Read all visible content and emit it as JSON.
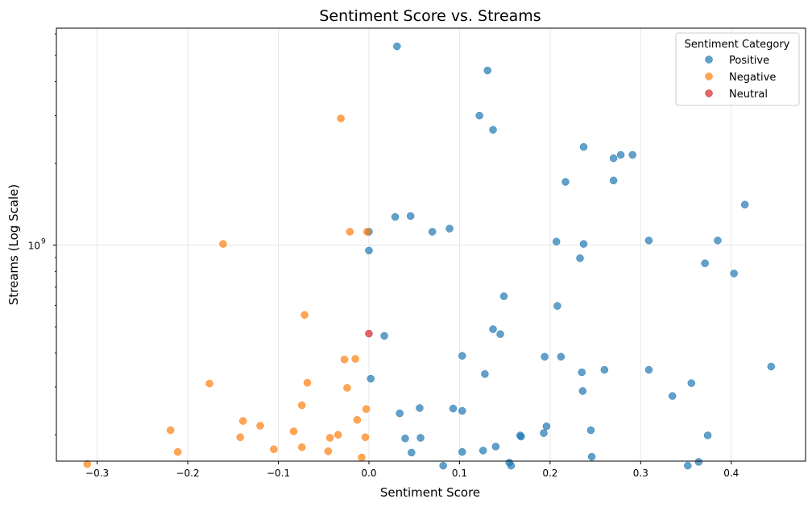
{
  "chart_data": {
    "type": "scatter",
    "title": "Sentiment Score vs. Streams",
    "xlabel": "Sentiment Score",
    "ylabel": "Streams (Log Scale)",
    "x_ticks": [
      -0.3,
      -0.2,
      -0.1,
      0.0,
      0.1,
      0.2,
      0.3,
      0.4
    ],
    "x_tick_labels": [
      "−0.3",
      "−0.2",
      "−0.1",
      "0.0",
      "0.1",
      "0.2",
      "0.3",
      "0.4"
    ],
    "y_major_ticks": [
      1000000000
    ],
    "y_tick_label_base": "10",
    "y_tick_label_exp": "9",
    "xlim": [
      -0.345,
      0.482
    ],
    "ylim": [
      160000000,
      6300000000
    ],
    "y_scale": "log",
    "grid": true,
    "legend": {
      "title": "Sentiment Category",
      "placement": "top-right"
    },
    "series": [
      {
        "name": "Positive",
        "color": "#1f77b4",
        "points": [
          [
            0.031,
            5400000000
          ],
          [
            0.131,
            4400000000
          ],
          [
            0.122,
            3000000000
          ],
          [
            0.137,
            2660000000
          ],
          [
            0.237,
            2300000000
          ],
          [
            0.27,
            2090000000
          ],
          [
            0.278,
            2150000000
          ],
          [
            0.291,
            2150000000
          ],
          [
            0.217,
            1710000000
          ],
          [
            0.27,
            1730000000
          ],
          [
            0.415,
            1410000000
          ],
          [
            0.029,
            1270000000
          ],
          [
            0.046,
            1280000000
          ],
          [
            0.089,
            1150000000
          ],
          [
            0.07,
            1120000000
          ],
          [
            0.0,
            1120000000
          ],
          [
            0.207,
            1030000000
          ],
          [
            0.237,
            1010000000
          ],
          [
            0.309,
            1040000000
          ],
          [
            0.385,
            1040000000
          ],
          [
            0.0,
            955000000
          ],
          [
            0.233,
            895000000
          ],
          [
            0.371,
            857000000
          ],
          [
            0.403,
            786000000
          ],
          [
            0.149,
            648000000
          ],
          [
            0.208,
            597000000
          ],
          [
            0.137,
            490000000
          ],
          [
            0.145,
            470000000
          ],
          [
            0.017,
            463000000
          ],
          [
            0.103,
            391000000
          ],
          [
            0.194,
            388000000
          ],
          [
            0.212,
            388000000
          ],
          [
            0.444,
            357000000
          ],
          [
            0.26,
            347000000
          ],
          [
            0.309,
            347000000
          ],
          [
            0.235,
            340000000
          ],
          [
            0.128,
            335000000
          ],
          [
            0.356,
            310000000
          ],
          [
            0.002,
            322000000
          ],
          [
            0.236,
            290000000
          ],
          [
            0.335,
            278000000
          ],
          [
            0.056,
            251000000
          ],
          [
            0.093,
            250000000
          ],
          [
            0.103,
            245000000
          ],
          [
            0.034,
            240000000
          ],
          [
            0.196,
            215000000
          ],
          [
            0.245,
            208000000
          ],
          [
            0.193,
            203000000
          ],
          [
            0.167,
            199000000
          ],
          [
            0.168,
            197000000
          ],
          [
            0.374,
            199000000
          ],
          [
            0.04,
            194000000
          ],
          [
            0.057,
            195000000
          ],
          [
            0.14,
            181000000
          ],
          [
            0.126,
            175000000
          ],
          [
            0.103,
            173000000
          ],
          [
            0.047,
            172000000
          ],
          [
            0.246,
            166000000
          ],
          [
            0.155,
            158000000
          ],
          [
            0.364,
            159000000
          ],
          [
            0.082,
            154000000
          ],
          [
            0.157,
            154000000
          ],
          [
            0.352,
            154000000
          ]
        ]
      },
      {
        "name": "Negative",
        "color": "#ff7f0e",
        "points": [
          [
            -0.031,
            2930000000
          ],
          [
            -0.021,
            1120000000
          ],
          [
            -0.002,
            1120000000
          ],
          [
            -0.161,
            1010000000
          ],
          [
            -0.071,
            553000000
          ],
          [
            -0.027,
            379000000
          ],
          [
            -0.015,
            381000000
          ],
          [
            -0.176,
            309000000
          ],
          [
            -0.068,
            311000000
          ],
          [
            -0.024,
            298000000
          ],
          [
            -0.074,
            257000000
          ],
          [
            -0.003,
            249000000
          ],
          [
            -0.013,
            227000000
          ],
          [
            -0.139,
            225000000
          ],
          [
            -0.12,
            216000000
          ],
          [
            -0.219,
            208000000
          ],
          [
            -0.083,
            206000000
          ],
          [
            -0.034,
            200000000
          ],
          [
            -0.142,
            196000000
          ],
          [
            -0.043,
            195000000
          ],
          [
            -0.004,
            196000000
          ],
          [
            -0.074,
            180000000
          ],
          [
            -0.105,
            177000000
          ],
          [
            -0.045,
            174000000
          ],
          [
            -0.211,
            173000000
          ],
          [
            -0.008,
            165000000
          ],
          [
            -0.311,
            156000000
          ]
        ]
      },
      {
        "name": "Neutral",
        "color": "#d62728",
        "points": [
          [
            0.0,
            472000000
          ]
        ]
      }
    ]
  }
}
